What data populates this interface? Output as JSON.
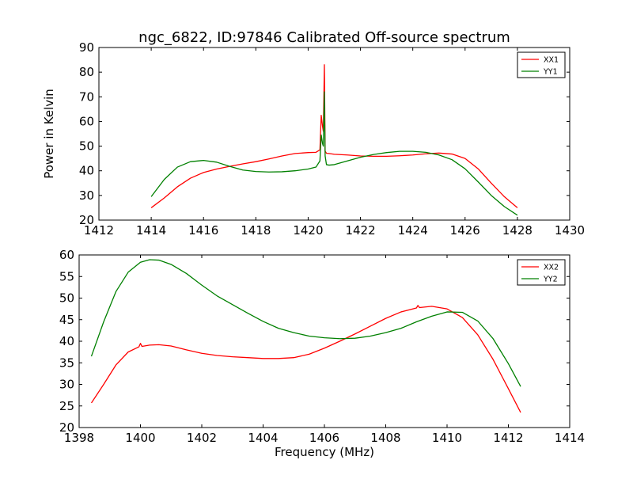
{
  "figure": {
    "title": "ngc_6822, ID:97846 Calibrated Off-source spectrum",
    "xlabel": "Frequency (MHz)",
    "ylabel": "Power in Kelvin"
  },
  "chart_data": [
    {
      "type": "line",
      "title": "ngc_6822, ID:97846 Calibrated Off-source spectrum",
      "xlabel": "",
      "ylabel": "Power in Kelvin",
      "xlim": [
        1412,
        1430
      ],
      "ylim": [
        20,
        90
      ],
      "xticks": [
        1412,
        1414,
        1416,
        1418,
        1420,
        1422,
        1424,
        1426,
        1428,
        1430
      ],
      "yticks": [
        20,
        30,
        40,
        50,
        60,
        70,
        80,
        90
      ],
      "grid": false,
      "legend": "top-right",
      "series": [
        {
          "name": "XX1",
          "color": "#ff0000",
          "x": [
            1414.0,
            1414.5,
            1415.0,
            1415.5,
            1416.0,
            1416.5,
            1417.0,
            1417.5,
            1418.0,
            1418.5,
            1419.0,
            1419.5,
            1420.0,
            1420.3,
            1420.45,
            1420.5,
            1420.55,
            1420.58,
            1420.62,
            1420.65,
            1420.7,
            1420.8,
            1421.0,
            1421.5,
            1422.0,
            1422.5,
            1423.0,
            1423.5,
            1424.0,
            1424.5,
            1425.0,
            1425.5,
            1426.0,
            1426.5,
            1427.0,
            1427.5,
            1428.0
          ],
          "y": [
            25.0,
            29.0,
            33.5,
            37.0,
            39.3,
            40.7,
            41.8,
            42.8,
            43.7,
            44.8,
            46.0,
            47.0,
            47.4,
            47.5,
            48.5,
            62.5,
            58.0,
            56.0,
            83.0,
            48.0,
            47.1,
            47.0,
            46.7,
            46.4,
            46.0,
            45.9,
            45.9,
            46.1,
            46.4,
            46.9,
            47.2,
            46.8,
            45.0,
            40.8,
            35.0,
            29.5,
            25.0
          ]
        },
        {
          "name": "YY1",
          "color": "#008000",
          "x": [
            1414.0,
            1414.5,
            1415.0,
            1415.5,
            1416.0,
            1416.5,
            1417.0,
            1417.5,
            1418.0,
            1418.5,
            1419.0,
            1419.5,
            1420.0,
            1420.3,
            1420.45,
            1420.5,
            1420.55,
            1420.58,
            1420.62,
            1420.65,
            1420.7,
            1420.8,
            1421.0,
            1421.5,
            1422.0,
            1422.5,
            1423.0,
            1423.5,
            1424.0,
            1424.5,
            1425.0,
            1425.5,
            1426.0,
            1426.5,
            1427.0,
            1427.5,
            1428.0
          ],
          "y": [
            29.5,
            36.5,
            41.5,
            43.7,
            44.2,
            43.5,
            41.8,
            40.3,
            39.7,
            39.5,
            39.6,
            40.0,
            40.7,
            41.5,
            44.0,
            54.5,
            51.0,
            50.0,
            72.0,
            46.0,
            42.5,
            42.3,
            42.5,
            44.0,
            45.5,
            46.6,
            47.4,
            47.9,
            47.9,
            47.5,
            46.4,
            44.5,
            40.8,
            35.5,
            30.0,
            25.5,
            22.0
          ]
        }
      ]
    },
    {
      "type": "line",
      "title": "",
      "xlabel": "Frequency (MHz)",
      "ylabel": "",
      "xlim": [
        1398,
        1414
      ],
      "ylim": [
        20,
        60
      ],
      "xticks": [
        1398,
        1400,
        1402,
        1404,
        1406,
        1408,
        1410,
        1412,
        1414
      ],
      "yticks": [
        20,
        25,
        30,
        35,
        40,
        45,
        50,
        55,
        60
      ],
      "grid": false,
      "legend": "top-right",
      "series": [
        {
          "name": "XX2",
          "color": "#ff0000",
          "x": [
            1398.4,
            1398.8,
            1399.2,
            1399.6,
            1399.95,
            1400.0,
            1400.05,
            1400.3,
            1400.6,
            1401.0,
            1401.5,
            1402.0,
            1402.5,
            1403.0,
            1403.5,
            1404.0,
            1404.5,
            1405.0,
            1405.5,
            1406.0,
            1406.5,
            1407.0,
            1407.5,
            1408.0,
            1408.5,
            1409.0,
            1409.05,
            1409.1,
            1409.5,
            1410.0,
            1410.5,
            1411.0,
            1411.5,
            1412.0,
            1412.4
          ],
          "y": [
            25.7,
            30.0,
            34.5,
            37.5,
            38.7,
            39.5,
            38.8,
            39.1,
            39.2,
            38.9,
            38.0,
            37.2,
            36.7,
            36.4,
            36.2,
            36.0,
            36.0,
            36.2,
            37.0,
            38.4,
            40.0,
            41.7,
            43.5,
            45.3,
            46.8,
            47.7,
            48.3,
            47.8,
            48.1,
            47.5,
            45.5,
            41.5,
            35.8,
            29.0,
            23.5
          ]
        },
        {
          "name": "YY2",
          "color": "#008000",
          "x": [
            1398.4,
            1398.8,
            1399.2,
            1399.6,
            1400.0,
            1400.3,
            1400.6,
            1401.0,
            1401.5,
            1402.0,
            1402.5,
            1403.0,
            1403.5,
            1404.0,
            1404.5,
            1405.0,
            1405.5,
            1406.0,
            1406.5,
            1407.0,
            1407.5,
            1408.0,
            1408.5,
            1409.0,
            1409.5,
            1410.0,
            1410.5,
            1411.0,
            1411.5,
            1412.0,
            1412.4
          ],
          "y": [
            36.5,
            44.5,
            51.5,
            56.0,
            58.3,
            58.9,
            58.8,
            57.8,
            55.7,
            53.0,
            50.5,
            48.5,
            46.5,
            44.6,
            43.0,
            42.0,
            41.2,
            40.8,
            40.6,
            40.7,
            41.2,
            42.0,
            43.0,
            44.5,
            45.8,
            46.8,
            46.7,
            44.7,
            40.6,
            34.8,
            29.5
          ]
        }
      ]
    }
  ]
}
